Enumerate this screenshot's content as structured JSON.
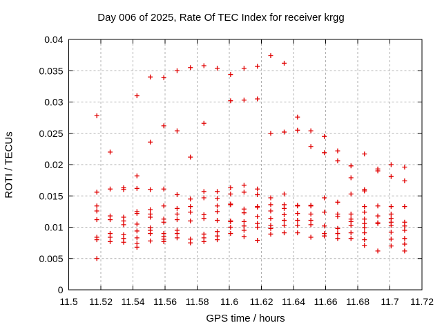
{
  "chart_data": {
    "type": "scatter",
    "title": "Day 006 of 2025, Rate Of TEC Index for receiver krgg",
    "xlabel": "GPS time / hours",
    "ylabel": "ROTI / TECUs",
    "xlim": [
      11.5,
      11.72
    ],
    "ylim": [
      0,
      0.04
    ],
    "xticks": [
      11.5,
      11.52,
      11.54,
      11.56,
      11.58,
      11.6,
      11.62,
      11.64,
      11.66,
      11.68,
      11.7,
      11.72
    ],
    "xtick_labels": [
      "11.5",
      "11.52",
      "11.54",
      "11.56",
      "11.58",
      "11.6",
      "11.62",
      "11.64",
      "11.66",
      "11.68",
      "11.7",
      "11.72"
    ],
    "yticks": [
      0,
      0.005,
      0.01,
      0.015,
      0.02,
      0.025,
      0.03,
      0.035,
      0.04
    ],
    "ytick_labels": [
      "0",
      "0.005",
      "0.01",
      "0.015",
      "0.02",
      "0.025",
      "0.03",
      "0.035",
      "0.04"
    ],
    "grid": true,
    "legend": "none",
    "style": {
      "marker_symbol": "plus",
      "marker_color": "#e00000",
      "marker_size": 7,
      "grid_color": "#b0b0b0",
      "border_color": "#000000",
      "background": "#ffffff"
    },
    "series": [
      {
        "name": "ROTI",
        "epochs": [
          {
            "t": 11.5175,
            "v": [
              0.0278,
              0.0156,
              0.0134,
              0.0126,
              0.0112,
              0.0084,
              0.008,
              0.005
            ]
          },
          {
            "t": 11.5258,
            "v": [
              0.022,
              0.0161,
              0.0118,
              0.0112,
              0.009,
              0.0084,
              0.0077
            ]
          },
          {
            "t": 11.5342,
            "v": [
              0.0163,
              0.016,
              0.0116,
              0.011,
              0.0104,
              0.0088,
              0.0082,
              0.0076
            ]
          },
          {
            "t": 11.5425,
            "v": [
              0.031,
              0.0182,
              0.0162,
              0.0125,
              0.0122,
              0.0105,
              0.0094,
              0.0083,
              0.0074,
              0.0068
            ]
          },
          {
            "t": 11.5508,
            "v": [
              0.034,
              0.0236,
              0.016,
              0.0128,
              0.0121,
              0.0116,
              0.0099,
              0.0095,
              0.009,
              0.0078
            ]
          },
          {
            "t": 11.5592,
            "v": [
              0.0339,
              0.0262,
              0.0161,
              0.0134,
              0.0113,
              0.0108,
              0.009,
              0.0085,
              0.0081,
              0.0077
            ]
          },
          {
            "t": 11.5675,
            "v": [
              0.035,
              0.0254,
              0.0152,
              0.013,
              0.0121,
              0.0112,
              0.0095,
              0.009,
              0.0083
            ]
          },
          {
            "t": 11.5758,
            "v": [
              0.0355,
              0.0212,
              0.0145,
              0.0133,
              0.0124,
              0.011,
              0.0081,
              0.0075
            ]
          },
          {
            "t": 11.5842,
            "v": [
              0.0358,
              0.0266,
              0.0157,
              0.0147,
              0.012,
              0.0114,
              0.0089,
              0.0083,
              0.0077
            ]
          },
          {
            "t": 11.5925,
            "v": [
              0.0354,
              0.0157,
              0.0146,
              0.0134,
              0.0125,
              0.0111,
              0.0093,
              0.0086,
              0.008
            ]
          },
          {
            "t": 11.6008,
            "v": [
              0.0344,
              0.0302,
              0.0163,
              0.0153,
              0.0137,
              0.0136,
              0.011,
              0.0109,
              0.01,
              0.009
            ]
          },
          {
            "t": 11.6092,
            "v": [
              0.0354,
              0.0303,
              0.0167,
              0.0156,
              0.0129,
              0.0123,
              0.0109,
              0.0102,
              0.0095,
              0.0085
            ]
          },
          {
            "t": 11.6175,
            "v": [
              0.0357,
              0.0305,
              0.0161,
              0.0152,
              0.0133,
              0.0132,
              0.0117,
              0.0106,
              0.01,
              0.0079
            ]
          },
          {
            "t": 11.6258,
            "v": [
              0.0374,
              0.025,
              0.0147,
              0.0136,
              0.0126,
              0.0114,
              0.0103,
              0.0098,
              0.0089
            ]
          },
          {
            "t": 11.6342,
            "v": [
              0.0362,
              0.0252,
              0.0153,
              0.0136,
              0.013,
              0.012,
              0.0111,
              0.0103,
              0.0091
            ]
          },
          {
            "t": 11.6425,
            "v": [
              0.0276,
              0.0255,
              0.0135,
              0.0134,
              0.0122,
              0.0111,
              0.0103,
              0.0091
            ]
          },
          {
            "t": 11.6508,
            "v": [
              0.0254,
              0.0229,
              0.0135,
              0.0134,
              0.0121,
              0.0111,
              0.0104,
              0.0084
            ]
          },
          {
            "t": 11.6592,
            "v": [
              0.0245,
              0.0219,
              0.0147,
              0.0124,
              0.0102,
              0.009,
              0.0086
            ]
          },
          {
            "t": 11.6675,
            "v": [
              0.0222,
              0.0206,
              0.014,
              0.0121,
              0.0117,
              0.0098,
              0.009,
              0.0082
            ]
          },
          {
            "t": 11.6758,
            "v": [
              0.0198,
              0.0179,
              0.0153,
              0.0121,
              0.0113,
              0.0109,
              0.0103,
              0.0091,
              0.0082
            ]
          },
          {
            "t": 11.6842,
            "v": [
              0.0217,
              0.016,
              0.0158,
              0.0133,
              0.0124,
              0.0113,
              0.0106,
              0.0099,
              0.0091,
              0.008,
              0.0071
            ]
          },
          {
            "t": 11.6925,
            "v": [
              0.0193,
              0.019,
              0.0134,
              0.0118,
              0.0107,
              0.0106,
              0.0062
            ]
          },
          {
            "t": 11.7008,
            "v": [
              0.02,
              0.0181,
              0.0133,
              0.0121,
              0.0114,
              0.0108,
              0.0103,
              0.0092,
              0.0081,
              0.007
            ]
          },
          {
            "t": 11.7092,
            "v": [
              0.0196,
              0.0174,
              0.0133,
              0.0108,
              0.0102,
              0.0095,
              0.0082,
              0.0073,
              0.0062
            ]
          }
        ]
      }
    ]
  }
}
